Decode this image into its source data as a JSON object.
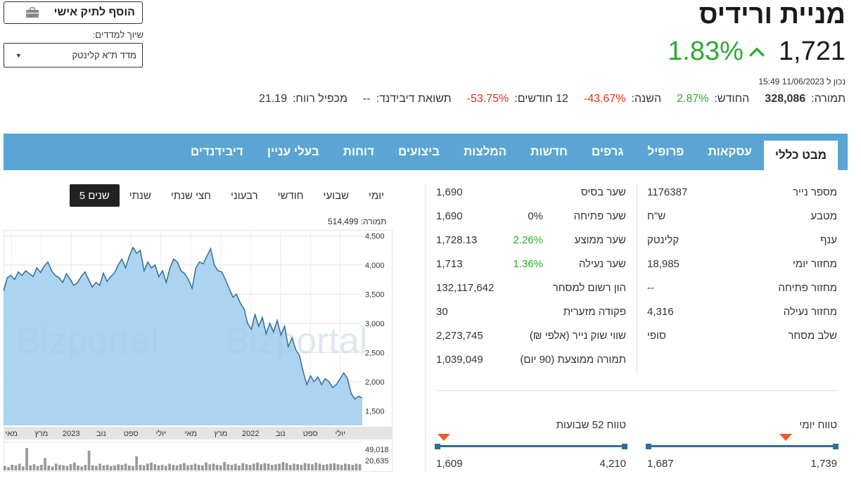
{
  "header": {
    "title": "מניית ורידיס",
    "last_price": "1,721",
    "change_pct": "1.83%",
    "updated": "נכון ל 11/06/2023 15:49"
  },
  "stats": [
    {
      "label": "תמורה:",
      "value": "328,086",
      "tone": "bold"
    },
    {
      "label": "החודש:",
      "value": "2.87%",
      "tone": "green"
    },
    {
      "label": "השנה:",
      "value": "-43.67%",
      "tone": "red"
    },
    {
      "label": "12 חודשים:",
      "value": "-53.75%",
      "tone": "red"
    },
    {
      "label": "תשואת דיבידנד:",
      "value": "--",
      "tone": "plain"
    },
    {
      "label": "מכפיל רווח:",
      "value": "21.19",
      "tone": "plain"
    }
  ],
  "portfolio_button": "הוסף לתיק אישי",
  "index_label": "שיוך למדדים:",
  "index_select": "מדד ת\"א קלינטק",
  "tabs": [
    "מבט כללי",
    "עסקאות",
    "פרופיל",
    "גרפים",
    "חדשות",
    "המלצות",
    "ביצועים",
    "דוחות",
    "בעלי עניין",
    "דיבידנדים"
  ],
  "info_right": [
    {
      "label": "מספר נייר",
      "value": "1176387"
    },
    {
      "label": "מטבע",
      "value": "ש\"ח"
    },
    {
      "label": "ענף",
      "value": "קלינטק"
    },
    {
      "label": "מחזור יומי",
      "value": "18,985"
    },
    {
      "label": "מחזור פתיחה",
      "value": "--"
    },
    {
      "label": "מחזור נעילה",
      "value": "4,316"
    },
    {
      "label": "שלב מסחר",
      "value": "סופי"
    }
  ],
  "info_mid": [
    {
      "label": "שער בסיס",
      "value": "1,690",
      "pct": ""
    },
    {
      "label": "שער פתיחה",
      "value": "1,690",
      "pct": "0%"
    },
    {
      "label": "שער ממוצע",
      "value": "1,728.13",
      "pct": "2.26%"
    },
    {
      "label": "שער נעילה",
      "value": "1,713",
      "pct": "1.36%"
    },
    {
      "label": "הון רשום למסחר",
      "value": "132,117,642",
      "pct": ""
    },
    {
      "label": "פקודה מזערית",
      "value": "30",
      "pct": ""
    },
    {
      "label": "שווי שוק נייר (אלפי ₪)",
      "value": "2,273,745",
      "pct": ""
    },
    {
      "label": "תמורה ממוצעת (90 יום)",
      "value": "1,039,049",
      "pct": ""
    }
  ],
  "ranges": {
    "daily": {
      "title": "טווח יומי",
      "low": "1,687",
      "high": "1,739",
      "position": 0.73
    },
    "weekly52": {
      "title": "טווח 52 שבועות",
      "low": "1,609",
      "high": "4,210",
      "position": 0.04
    }
  },
  "periods": [
    "יומי",
    "שבועי",
    "חודשי",
    "רבעוני",
    "חצי שנתי",
    "שנתי",
    "5 שנים"
  ],
  "active_period": "5 שנים",
  "chart_volume_label": "תמורה: 514,499",
  "colors": {
    "accent": "#5aa5d3",
    "up": "#2eaa30",
    "down": "#e0301e",
    "marker": "#f05a28",
    "range": "#2e6f99"
  },
  "chart_data": {
    "type": "area",
    "y_ticks": [
      "4,500",
      "4,000",
      "3,500",
      "3,000",
      "2,500",
      "2,000",
      "1,500"
    ],
    "ylim": [
      1250,
      4600
    ],
    "x_ticks": [
      "יולי",
      "ספט",
      "נוב",
      "2022",
      "מרץ",
      "מאי",
      "יולי",
      "ספט",
      "נוב",
      "2023",
      "מרץ",
      "מאי"
    ],
    "values": [
      3550,
      3780,
      3820,
      3750,
      3880,
      3820,
      3900,
      3850,
      3800,
      3950,
      3870,
      3980,
      4050,
      3900,
      3820,
      3780,
      3700,
      3850,
      3760,
      3650,
      3700,
      3800,
      3880,
      3750,
      3620,
      3700,
      3650,
      3860,
      3720,
      3800,
      3860,
      4000,
      4100,
      3950,
      4150,
      4300,
      4200,
      4250,
      3900,
      4050,
      3950,
      4000,
      3800,
      3900,
      3700,
      3950,
      4100,
      4050,
      3900,
      3850,
      3750,
      3600,
      3950,
      4050,
      4020,
      4150,
      4280,
      4000,
      3900,
      3880,
      3750,
      3600,
      3450,
      3500,
      3350,
      3250,
      3000,
      2900,
      3150,
      2950,
      3100,
      2820,
      3000,
      2850,
      3050,
      2800,
      2950,
      2600,
      2750,
      2550,
      2450,
      2180,
      1950,
      2100,
      2000,
      2080,
      1950,
      2050,
      2000,
      1900,
      1950,
      2050,
      2150,
      2050,
      1800,
      1700,
      1750,
      1720
    ],
    "volume_ticks": [
      "49,018",
      "20,635"
    ],
    "volume": [
      8,
      6,
      10,
      9,
      12,
      7,
      40,
      9,
      11,
      8,
      10,
      22,
      9,
      7,
      12,
      10,
      9,
      8,
      11,
      14,
      9,
      7,
      10,
      35,
      9,
      8,
      12,
      9,
      10,
      8,
      9,
      11,
      10,
      12,
      9,
      8,
      25,
      10,
      9,
      12,
      14,
      11,
      9,
      10,
      8,
      12,
      10,
      9,
      11,
      13,
      9,
      10,
      12,
      10,
      9,
      14,
      11,
      12,
      10,
      9,
      15,
      11,
      10,
      12,
      9,
      13,
      11,
      10,
      12,
      14,
      11,
      13,
      12,
      10,
      11,
      12,
      15,
      13,
      10,
      12,
      11,
      10,
      13,
      12,
      11,
      14,
      12,
      10,
      11,
      12,
      13,
      11,
      10,
      12,
      11,
      10,
      12,
      11
    ]
  }
}
